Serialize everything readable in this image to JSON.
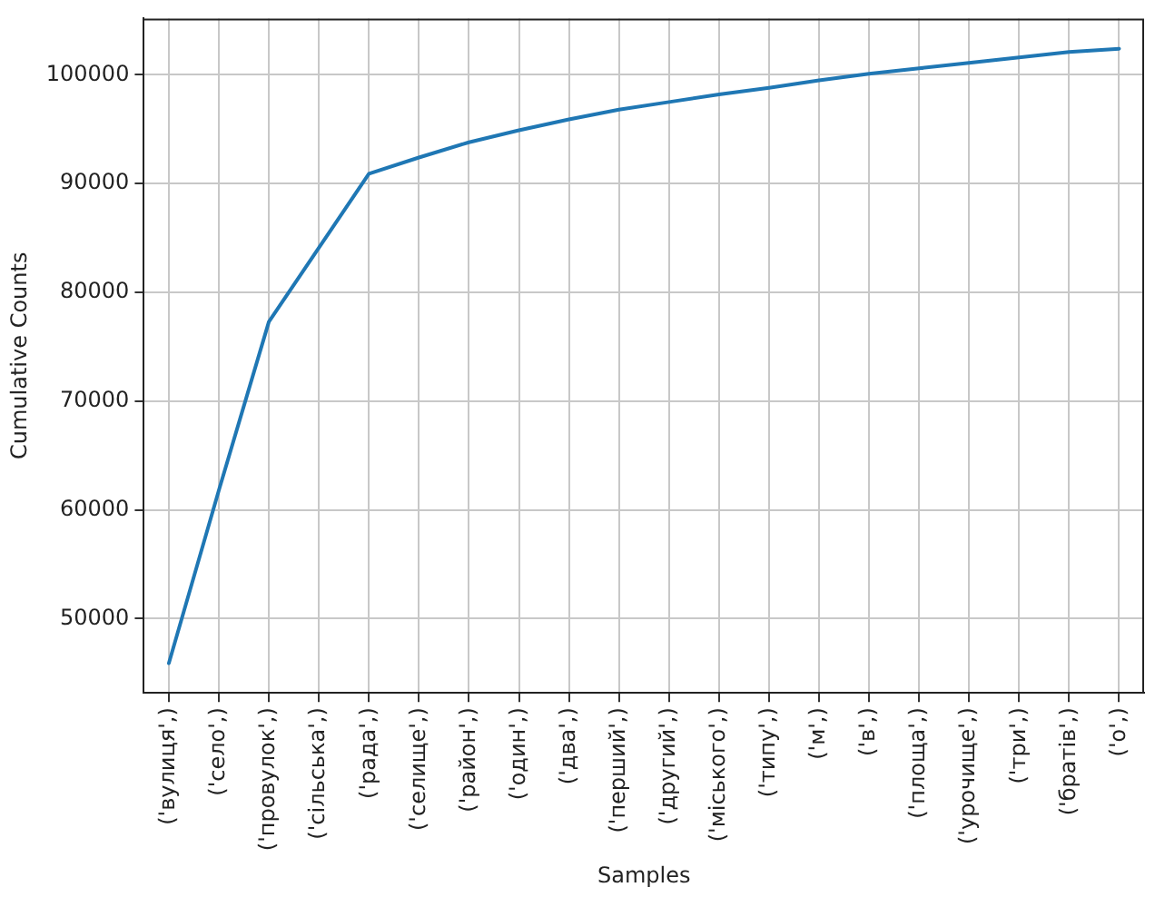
{
  "chart_data": {
    "type": "line",
    "xlabel": "Samples",
    "ylabel": "Cumulative Counts",
    "categories": [
      "('вулиця',)",
      "('село',)",
      "('провулок',)",
      "('сільська',)",
      "('рада',)",
      "('селище',)",
      "('район',)",
      "('один',)",
      "('два',)",
      "('перший',)",
      "('другий',)",
      "('міського',)",
      "('типу',)",
      "('м',)",
      "('в',)",
      "('площа',)",
      "('урочище',)",
      "('три',)",
      "('братів',)",
      "('о',)"
    ],
    "series": [
      {
        "color": "#1f77b4",
        "values": [
          45900,
          61800,
          77300,
          84100,
          90900,
          92400,
          93800,
          94900,
          95900,
          96800,
          97500,
          98200,
          98800,
          99500,
          100100,
          100600,
          101100,
          101600,
          102100,
          102400
        ]
      }
    ],
    "ylim": [
      43170,
      105180
    ],
    "yticks": [
      50000,
      60000,
      70000,
      80000,
      90000,
      100000
    ],
    "grid": true,
    "legend": false,
    "marker": "none",
    "line_style": "solid"
  }
}
